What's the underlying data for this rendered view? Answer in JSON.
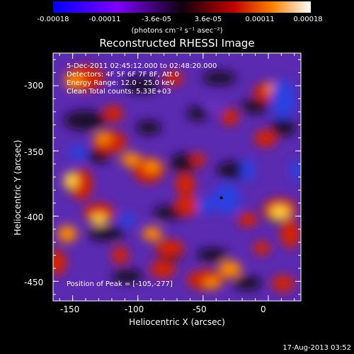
{
  "colorbar": {
    "ticks": [
      "-0.00018",
      "-0.00011",
      "-3.6e-05",
      "3.6e-05",
      "0.00011",
      "0.00018"
    ],
    "units": "(photons cm⁻² s⁻¹ asec⁻²)",
    "colors": [
      "#0000ff",
      "#9000ff",
      "#200020",
      "#c00000",
      "#ff8000",
      "#ffffff"
    ]
  },
  "chart_data": {
    "type": "heatmap",
    "title": "Reconstructed RHESSI Image",
    "xlabel": "Heliocentric X (arcsec)",
    "ylabel": "Heliocentric Y (arcsec)",
    "xlim": [
      -165,
      25
    ],
    "ylim": [
      -465,
      -275
    ],
    "xticks": [
      -150,
      -100,
      -50,
      0
    ],
    "yticks": [
      -300,
      -350,
      -400,
      -450
    ],
    "peak": [
      -105,
      -277
    ],
    "annotations": [
      "5-Dec-2011 02:45:12.000 to 02:48:20.000",
      "Detectors: 4F 5F 6F 7F 8F, Att 0",
      "Energy Range: 12.0 - 25.0 keV",
      "Clean    Total counts: 5.33E+03"
    ],
    "peak_label": "Position of Peak = [-105,-277]"
  },
  "footer": "17-Aug-2013 03:52"
}
